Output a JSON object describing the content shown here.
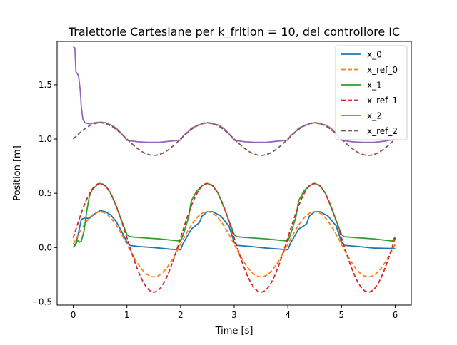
{
  "chart_data": {
    "type": "line",
    "title": "Traiettorie Cartesiane per k_frition = 10, del controllore IC",
    "xlabel": "Time [s]",
    "ylabel": "Position [m]",
    "xlim": [
      -0.3,
      6.3
    ],
    "ylim": [
      -0.53,
      1.9
    ],
    "xticks": [
      0,
      1,
      2,
      3,
      4,
      5,
      6
    ],
    "xtick_labels": [
      "0",
      "1",
      "2",
      "3",
      "4",
      "5",
      "6"
    ],
    "yticks": [
      -0.5,
      0.0,
      0.5,
      1.0,
      1.5
    ],
    "ytick_labels": [
      "−0.5",
      "0.0",
      "0.5",
      "1.0",
      "1.5"
    ],
    "grid": false,
    "legend_position": "top-right",
    "series": [
      {
        "name": "x_0",
        "color": "#1f77b4",
        "dash": "solid",
        "points": [
          [
            0,
            0
          ],
          [
            0.05,
            0.04
          ],
          [
            0.1,
            0.14
          ],
          [
            0.15,
            0.26
          ],
          [
            0.2,
            0.27
          ],
          [
            0.3,
            0.27
          ],
          [
            0.4,
            0.31
          ],
          [
            0.5,
            0.34
          ],
          [
            0.6,
            0.33
          ],
          [
            0.7,
            0.3
          ],
          [
            0.8,
            0.24
          ],
          [
            0.9,
            0.15
          ],
          [
            1.0,
            0.05
          ],
          [
            1.05,
            0.02
          ],
          [
            1.2,
            0.01
          ],
          [
            1.5,
            0.0
          ],
          [
            1.8,
            -0.015
          ],
          [
            2.0,
            -0.02
          ],
          [
            2.05,
            0.04
          ],
          [
            2.2,
            0.17
          ],
          [
            2.3,
            0.21
          ],
          [
            2.35,
            0.23
          ],
          [
            2.4,
            0.29
          ],
          [
            2.5,
            0.33
          ],
          [
            2.6,
            0.33
          ],
          [
            2.75,
            0.29
          ],
          [
            2.9,
            0.2
          ],
          [
            3.0,
            0.05
          ],
          [
            3.05,
            0.02
          ],
          [
            3.3,
            0.01
          ],
          [
            3.6,
            -0.005
          ],
          [
            4.0,
            -0.02
          ],
          [
            4.05,
            0.04
          ],
          [
            4.2,
            0.17
          ],
          [
            4.3,
            0.2
          ],
          [
            4.35,
            0.22
          ],
          [
            4.4,
            0.29
          ],
          [
            4.5,
            0.33
          ],
          [
            4.6,
            0.33
          ],
          [
            4.75,
            0.29
          ],
          [
            4.9,
            0.2
          ],
          [
            5.0,
            0.05
          ],
          [
            5.05,
            0.02
          ],
          [
            5.3,
            0.01
          ],
          [
            5.6,
            -0.005
          ],
          [
            6.0,
            -0.01
          ]
        ]
      },
      {
        "name": "x_ref_0",
        "color": "#ff7f0e",
        "dash": "dashed",
        "fn": "ref0"
      },
      {
        "name": "x_1",
        "color": "#2ca02c",
        "dash": "solid",
        "points": [
          [
            0,
            0
          ],
          [
            0.05,
            0.03
          ],
          [
            0.08,
            0.07
          ],
          [
            0.12,
            0.05
          ],
          [
            0.15,
            0.06
          ],
          [
            0.2,
            0.15
          ],
          [
            0.25,
            0.33
          ],
          [
            0.3,
            0.47
          ],
          [
            0.35,
            0.53
          ],
          [
            0.45,
            0.58
          ],
          [
            0.5,
            0.59
          ],
          [
            0.6,
            0.57
          ],
          [
            0.7,
            0.5
          ],
          [
            0.8,
            0.38
          ],
          [
            0.9,
            0.25
          ],
          [
            1.0,
            0.12
          ],
          [
            1.05,
            0.1
          ],
          [
            1.3,
            0.09
          ],
          [
            1.6,
            0.08
          ],
          [
            1.8,
            0.07
          ],
          [
            2.0,
            0.06
          ],
          [
            2.05,
            0.12
          ],
          [
            2.15,
            0.28
          ],
          [
            2.2,
            0.43
          ],
          [
            2.3,
            0.52
          ],
          [
            2.4,
            0.57
          ],
          [
            2.5,
            0.59
          ],
          [
            2.6,
            0.57
          ],
          [
            2.7,
            0.5
          ],
          [
            2.8,
            0.38
          ],
          [
            2.9,
            0.25
          ],
          [
            3.0,
            0.12
          ],
          [
            3.05,
            0.1
          ],
          [
            3.3,
            0.09
          ],
          [
            3.6,
            0.08
          ],
          [
            4.0,
            0.06
          ],
          [
            4.05,
            0.12
          ],
          [
            4.15,
            0.28
          ],
          [
            4.2,
            0.43
          ],
          [
            4.3,
            0.52
          ],
          [
            4.4,
            0.57
          ],
          [
            4.5,
            0.59
          ],
          [
            4.6,
            0.57
          ],
          [
            4.7,
            0.5
          ],
          [
            4.8,
            0.38
          ],
          [
            4.9,
            0.25
          ],
          [
            5.0,
            0.12
          ],
          [
            5.05,
            0.1
          ],
          [
            5.3,
            0.09
          ],
          [
            5.6,
            0.08
          ],
          [
            5.95,
            0.06
          ],
          [
            6.0,
            0.1
          ]
        ]
      },
      {
        "name": "x_ref_1",
        "color": "#d62728",
        "dash": "dashed",
        "fn": "ref1"
      },
      {
        "name": "x_2",
        "color": "#9467bd",
        "dash": "solid",
        "points": [
          [
            0,
            1.85
          ],
          [
            0.03,
            1.84
          ],
          [
            0.05,
            1.62
          ],
          [
            0.08,
            1.6
          ],
          [
            0.1,
            1.58
          ],
          [
            0.13,
            1.45
          ],
          [
            0.15,
            1.3
          ],
          [
            0.18,
            1.18
          ],
          [
            0.22,
            1.15
          ],
          [
            0.3,
            1.14
          ],
          [
            0.4,
            1.15
          ],
          [
            0.5,
            1.155
          ],
          [
            0.6,
            1.15
          ],
          [
            0.7,
            1.13
          ],
          [
            0.8,
            1.1
          ],
          [
            0.9,
            1.05
          ],
          [
            1.0,
            0.99
          ],
          [
            1.05,
            0.985
          ],
          [
            1.2,
            0.975
          ],
          [
            1.4,
            0.97
          ],
          [
            1.6,
            0.97
          ],
          [
            1.8,
            0.98
          ],
          [
            2.0,
            0.99
          ],
          [
            2.05,
            1.03
          ],
          [
            2.15,
            1.07
          ],
          [
            2.2,
            1.1
          ],
          [
            2.3,
            1.12
          ],
          [
            2.4,
            1.14
          ],
          [
            2.5,
            1.15
          ],
          [
            2.6,
            1.14
          ],
          [
            2.7,
            1.13
          ],
          [
            2.8,
            1.1
          ],
          [
            2.9,
            1.05
          ],
          [
            3.0,
            0.99
          ],
          [
            3.05,
            0.985
          ],
          [
            3.2,
            0.975
          ],
          [
            3.4,
            0.97
          ],
          [
            3.6,
            0.97
          ],
          [
            3.8,
            0.98
          ],
          [
            4.0,
            0.99
          ],
          [
            4.05,
            1.03
          ],
          [
            4.15,
            1.07
          ],
          [
            4.2,
            1.1
          ],
          [
            4.3,
            1.12
          ],
          [
            4.4,
            1.14
          ],
          [
            4.5,
            1.15
          ],
          [
            4.6,
            1.14
          ],
          [
            4.7,
            1.13
          ],
          [
            4.8,
            1.1
          ],
          [
            4.9,
            1.05
          ],
          [
            5.0,
            0.99
          ],
          [
            5.05,
            0.985
          ],
          [
            5.2,
            0.975
          ],
          [
            5.4,
            0.97
          ],
          [
            5.6,
            0.97
          ],
          [
            5.8,
            0.98
          ],
          [
            6.0,
            1.0
          ]
        ]
      },
      {
        "name": "x_ref_2",
        "color": "#8c564b",
        "dash": "dashed",
        "fn": "ref2"
      }
    ]
  }
}
